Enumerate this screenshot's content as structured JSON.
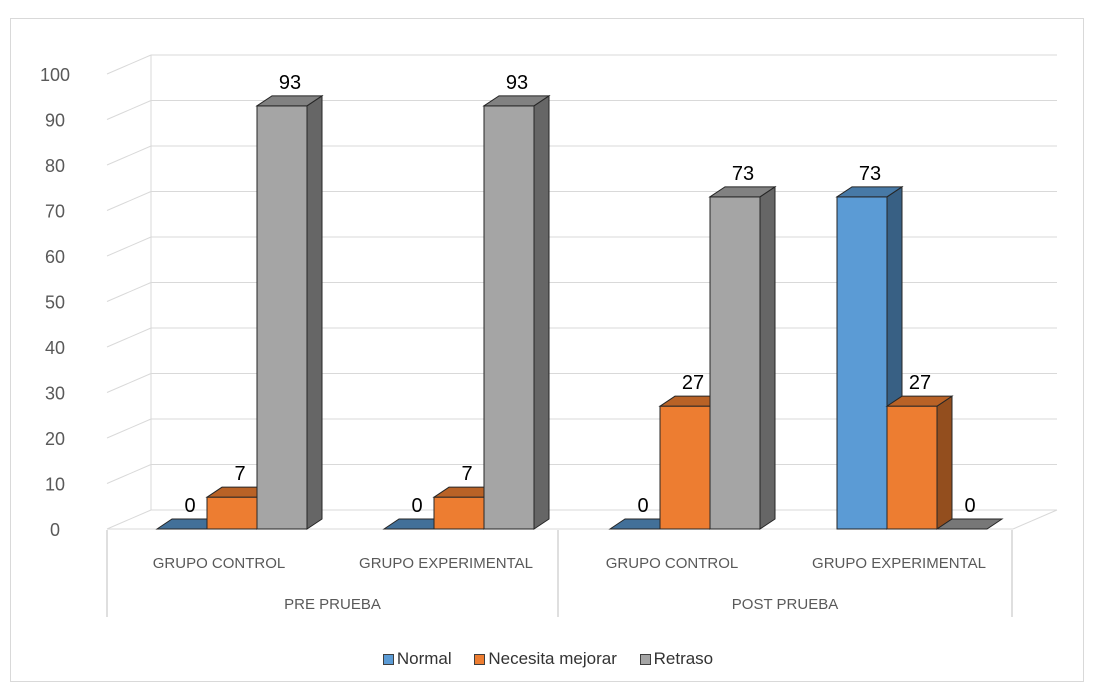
{
  "chart_data": {
    "type": "bar",
    "title": "",
    "xlabel": "",
    "ylabel": "",
    "ylim": [
      0,
      100
    ],
    "yticks": [
      0,
      10,
      20,
      30,
      40,
      50,
      60,
      70,
      80,
      90,
      100
    ],
    "grid": true,
    "legend_position": "bottom",
    "three_d": true,
    "category_groups": [
      {
        "label": "PRE PRUEBA",
        "categories": [
          "GRUPO CONTROL",
          "GRUPO EXPERIMENTAL"
        ]
      },
      {
        "label": "POST PRUEBA",
        "categories": [
          "GRUPO CONTROL",
          "GRUPO EXPERIMENTAL"
        ]
      }
    ],
    "categories": [
      "GRUPO CONTROL",
      "GRUPO EXPERIMENTAL",
      "GRUPO CONTROL",
      "GRUPO EXPERIMENTAL"
    ],
    "series": [
      {
        "name": "Normal",
        "color": "#5b9bd5",
        "values": [
          0,
          0,
          0,
          73
        ]
      },
      {
        "name": "Necesita mejorar",
        "color": "#ed7d31",
        "values": [
          7,
          7,
          27,
          27
        ]
      },
      {
        "name": "Retraso",
        "color": "#a5a5a5",
        "values": [
          93,
          93,
          73,
          0
        ]
      }
    ]
  }
}
